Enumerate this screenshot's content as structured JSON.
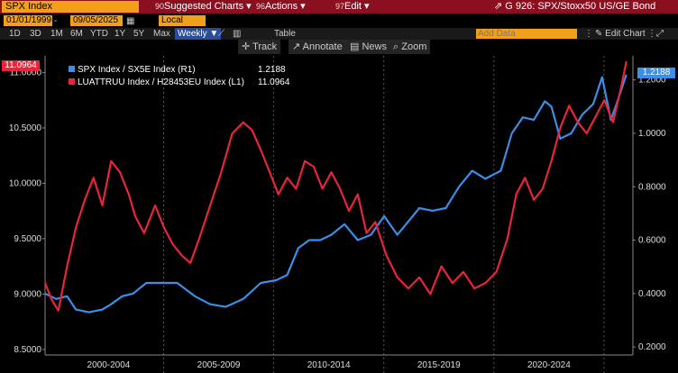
{
  "header": {
    "ticker": "SPX Index",
    "menu_suggested": "Suggested Charts",
    "menu_suggested_key": "90",
    "menu_actions": "Actions",
    "menu_actions_key": "96",
    "menu_edit": "Edit",
    "menu_edit_key": "97",
    "chart_title": "G 926: SPX/Stoxx50 US/GE Bond"
  },
  "dates": {
    "start": "01/01/1999",
    "end": "09/05/2025",
    "currency": "Local CCY"
  },
  "periods": [
    "1D",
    "3D",
    "1M",
    "6M",
    "YTD",
    "1Y",
    "5Y",
    "Max"
  ],
  "frequency": "Weekly",
  "table_label": "Table",
  "add_data_placeholder": "Add Data",
  "edit_chart": "Edit Chart",
  "tools": {
    "track": "Track",
    "annotate": "Annotate",
    "news": "News",
    "zoom": "Zoom"
  },
  "legend": {
    "blue_label": "SPX Index / SX5E Index (R1)",
    "blue_value": "1.2188",
    "red_label": "LUATTRUU Index / H28453EU Index (L1)",
    "red_value": "11.0964"
  },
  "last_tags": {
    "left": "11.0964",
    "right": "1.2188"
  },
  "colors": {
    "blue": "#3a8fe8",
    "red": "#e8253a",
    "accent": "#f2a019",
    "bar": "#8a1020"
  },
  "chart_data": {
    "type": "line",
    "x_labels": [
      "2000-2004",
      "2005-2009",
      "2010-2014",
      "2015-2019",
      "2020-2024"
    ],
    "xlim": [
      1999.0,
      2025.7
    ],
    "left_axis": {
      "ticks": [
        "11.0000",
        "10.5000",
        "10.0000",
        "9.5000",
        "9.0000",
        "8.5000"
      ],
      "ylim": [
        8.45,
        11.15
      ]
    },
    "right_axis": {
      "ticks": [
        "1.2000",
        "1.0000",
        "0.8000",
        "0.6000",
        "0.4000",
        "0.2000"
      ],
      "ylim": [
        0.17,
        1.29
      ]
    },
    "series": [
      {
        "name": "SPX Index / SX5E Index (R1)",
        "axis": "right",
        "color": "#3a8fe8",
        "x": [
          1999.0,
          1999.5,
          2000.0,
          2000.4,
          2001.0,
          2001.6,
          2002.0,
          2002.5,
          2003.0,
          2003.6,
          2004.2,
          2005.0,
          2005.8,
          2006.5,
          2007.2,
          2008.0,
          2008.8,
          2009.5,
          2010.0,
          2010.5,
          2011.0,
          2011.5,
          2012.0,
          2012.6,
          2013.2,
          2013.8,
          2014.4,
          2015.0,
          2015.5,
          2016.0,
          2016.6,
          2017.2,
          2017.8,
          2018.4,
          2019.0,
          2019.7,
          2020.2,
          2020.7,
          2021.2,
          2021.7,
          2022.0,
          2022.4,
          2022.9,
          2023.4,
          2023.9,
          2024.3,
          2024.7,
          2025.0,
          2025.4
        ],
        "y": [
          0.4,
          0.38,
          0.39,
          0.34,
          0.33,
          0.34,
          0.36,
          0.39,
          0.4,
          0.44,
          0.44,
          0.44,
          0.39,
          0.36,
          0.35,
          0.38,
          0.44,
          0.45,
          0.47,
          0.57,
          0.6,
          0.6,
          0.62,
          0.66,
          0.6,
          0.62,
          0.69,
          0.62,
          0.67,
          0.72,
          0.71,
          0.72,
          0.8,
          0.86,
          0.83,
          0.86,
          1.0,
          1.06,
          1.05,
          1.12,
          1.1,
          0.98,
          1.0,
          1.07,
          1.11,
          1.21,
          1.05,
          1.12,
          1.22
        ]
      },
      {
        "name": "LUATTRUU Index / H28453EU Index (L1)",
        "axis": "left",
        "color": "#e8253a",
        "x": [
          1999.0,
          1999.3,
          1999.6,
          2000.0,
          2000.4,
          2000.8,
          2001.2,
          2001.6,
          2002.0,
          2002.4,
          2002.8,
          2003.1,
          2003.5,
          2004.0,
          2004.4,
          2004.8,
          2005.2,
          2005.6,
          2006.0,
          2006.5,
          2007.0,
          2007.5,
          2008.0,
          2008.4,
          2008.8,
          2009.2,
          2009.6,
          2010.0,
          2010.4,
          2010.8,
          2011.2,
          2011.6,
          2012.0,
          2012.4,
          2012.8,
          2013.2,
          2013.6,
          2014.0,
          2014.5,
          2015.0,
          2015.5,
          2016.0,
          2016.5,
          2017.0,
          2017.5,
          2018.0,
          2018.5,
          2019.0,
          2019.5,
          2020.0,
          2020.4,
          2020.8,
          2021.2,
          2021.6,
          2022.0,
          2022.4,
          2022.8,
          2023.2,
          2023.6,
          2024.0,
          2024.4,
          2024.8,
          2025.2,
          2025.4
        ],
        "y": [
          9.1,
          8.95,
          8.85,
          9.25,
          9.6,
          9.85,
          10.05,
          9.8,
          10.2,
          10.1,
          9.9,
          9.7,
          9.55,
          9.8,
          9.6,
          9.45,
          9.35,
          9.28,
          9.5,
          9.8,
          10.1,
          10.45,
          10.55,
          10.48,
          10.3,
          10.1,
          9.9,
          10.05,
          9.95,
          10.2,
          10.15,
          9.95,
          10.1,
          9.95,
          9.75,
          9.9,
          9.55,
          9.65,
          9.35,
          9.15,
          9.05,
          9.15,
          9.0,
          9.25,
          9.1,
          9.2,
          9.05,
          9.1,
          9.2,
          9.5,
          9.9,
          10.05,
          9.85,
          9.95,
          10.2,
          10.5,
          10.7,
          10.55,
          10.45,
          10.6,
          10.75,
          10.55,
          10.9,
          11.1
        ]
      }
    ]
  }
}
